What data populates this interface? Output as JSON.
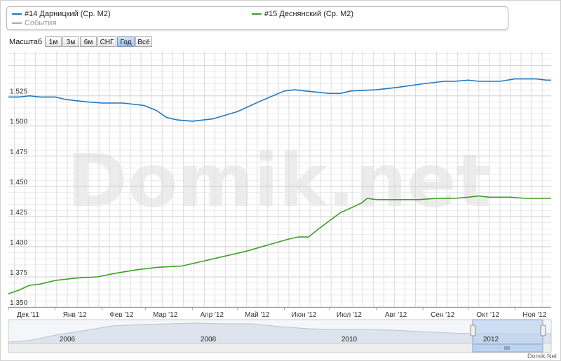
{
  "legend": {
    "series1": "#14 Дарницкий (Ср. М2)",
    "series2": "#15 Деснянский (Ср. М2)",
    "events": "События"
  },
  "zoom": {
    "label": "Масштаб",
    "buttons": [
      "1м",
      "3м",
      "6м",
      "СНГ",
      "Год",
      "Всё"
    ],
    "active": "Год"
  },
  "watermark": "Domik.net",
  "credit": "Domik.Net",
  "navigator": {
    "years": [
      "2006",
      "2008",
      "2010",
      "2012"
    ]
  },
  "colors": {
    "series1": "#1f78c1",
    "series2": "#3ea024",
    "events": "#aaaaaa"
  },
  "chart_data": {
    "type": "line",
    "x_labels": [
      "Дек '11",
      "Янв '12",
      "Фев '12",
      "Мар '12",
      "Апр '12",
      "Май '12",
      "Июн '12",
      "Июл '12",
      "Авг '12",
      "Сен '12",
      "Окт '12",
      "Ноя '12"
    ],
    "xlim": [
      "2011-12-01",
      "2012-11-25"
    ],
    "ylim": [
      1350,
      1562
    ],
    "y_ticks": [
      1350,
      1375,
      1400,
      1425,
      1450,
      1475,
      1500,
      1525
    ],
    "y_tick_labels": [
      "1,350",
      "1,375",
      "1,400",
      "1,425",
      "1,450",
      "1,475",
      "1,500",
      "1,525"
    ],
    "grid": true,
    "legend_position": "top",
    "series": [
      {
        "name": "#14 Дарницкий (Ср. М2)",
        "color": "#1f78c1",
        "points": [
          [
            "2011-12-01",
            1524
          ],
          [
            "2011-12-08",
            1524
          ],
          [
            "2011-12-15",
            1525
          ],
          [
            "2011-12-22",
            1524
          ],
          [
            "2012-01-01",
            1524
          ],
          [
            "2012-01-08",
            1522
          ],
          [
            "2012-01-22",
            1520
          ],
          [
            "2012-02-01",
            1519
          ],
          [
            "2012-02-15",
            1519
          ],
          [
            "2012-02-29",
            1517
          ],
          [
            "2012-03-08",
            1513
          ],
          [
            "2012-03-15",
            1507
          ],
          [
            "2012-03-22",
            1505
          ],
          [
            "2012-04-01",
            1504
          ],
          [
            "2012-04-15",
            1506
          ],
          [
            "2012-05-01",
            1512
          ],
          [
            "2012-05-15",
            1520
          ],
          [
            "2012-06-01",
            1529
          ],
          [
            "2012-06-08",
            1530
          ],
          [
            "2012-06-15",
            1529
          ],
          [
            "2012-07-01",
            1527
          ],
          [
            "2012-07-08",
            1527
          ],
          [
            "2012-07-15",
            1529
          ],
          [
            "2012-08-01",
            1530
          ],
          [
            "2012-08-15",
            1532
          ],
          [
            "2012-09-01",
            1535
          ],
          [
            "2012-09-15",
            1537
          ],
          [
            "2012-09-22",
            1537
          ],
          [
            "2012-10-01",
            1538
          ],
          [
            "2012-10-08",
            1537
          ],
          [
            "2012-10-22",
            1537
          ],
          [
            "2012-11-01",
            1539
          ],
          [
            "2012-11-15",
            1539
          ],
          [
            "2012-11-22",
            1538
          ],
          [
            "2012-11-25",
            1538
          ]
        ]
      },
      {
        "name": "#15 Деснянский (Ср. М2)",
        "color": "#3ea024",
        "points": [
          [
            "2011-12-01",
            1361
          ],
          [
            "2011-12-08",
            1364
          ],
          [
            "2011-12-15",
            1368
          ],
          [
            "2011-12-22",
            1369
          ],
          [
            "2012-01-01",
            1372
          ],
          [
            "2012-01-15",
            1374
          ],
          [
            "2012-01-29",
            1375
          ],
          [
            "2012-02-10",
            1378
          ],
          [
            "2012-02-25",
            1381
          ],
          [
            "2012-03-10",
            1383
          ],
          [
            "2012-03-25",
            1384
          ],
          [
            "2012-04-08",
            1388
          ],
          [
            "2012-04-22",
            1392
          ],
          [
            "2012-05-06",
            1396
          ],
          [
            "2012-05-20",
            1401
          ],
          [
            "2012-06-03",
            1406
          ],
          [
            "2012-06-10",
            1408
          ],
          [
            "2012-06-17",
            1408
          ],
          [
            "2012-06-24",
            1415
          ],
          [
            "2012-07-08",
            1428
          ],
          [
            "2012-07-22",
            1436
          ],
          [
            "2012-07-26",
            1440
          ],
          [
            "2012-08-01",
            1439
          ],
          [
            "2012-08-15",
            1439
          ],
          [
            "2012-08-29",
            1439
          ],
          [
            "2012-09-10",
            1440
          ],
          [
            "2012-09-22",
            1440
          ],
          [
            "2012-10-01",
            1441
          ],
          [
            "2012-10-08",
            1442
          ],
          [
            "2012-10-15",
            1441
          ],
          [
            "2012-10-29",
            1441
          ],
          [
            "2012-11-08",
            1440
          ],
          [
            "2012-11-18",
            1440
          ],
          [
            "2012-11-25",
            1440
          ]
        ]
      }
    ]
  }
}
